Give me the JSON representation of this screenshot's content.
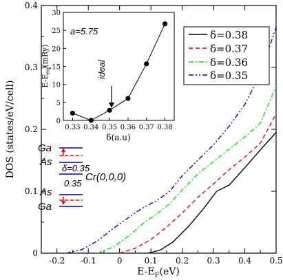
{
  "chart_data": [
    {
      "type": "line",
      "title": "",
      "xlabel": "E-E_F(eV)",
      "xlabel_main": "E-E",
      "xlabel_sub": "F",
      "xlabel_unit": "(eV)",
      "ylabel": "DOS (states/eV/cell)",
      "xlim": [
        -0.25,
        0.5
      ],
      "ylim": [
        0,
        0.4
      ],
      "xticks": [
        -0.2,
        -0.1,
        0,
        0.1,
        0.2,
        0.3,
        0.4,
        0.5
      ],
      "xtick_labels": [
        "-0.2",
        "-0.1",
        "0",
        "0.1",
        "0.2",
        "0.3",
        "0.4",
        "0.5"
      ],
      "yticks": [
        0,
        0.1,
        0.2,
        0.3,
        0.4
      ],
      "ytick_labels": [
        "0",
        "0.1",
        "0.2",
        "0.3",
        "0.4"
      ],
      "legend_position": "top-right",
      "series": [
        {
          "name": "δ=0.38",
          "color": "#000000",
          "dash": "solid",
          "x": [
            0.09,
            0.13,
            0.17,
            0.22,
            0.27,
            0.31,
            0.35,
            0.4,
            0.45,
            0.5
          ],
          "y": [
            0.0,
            0.005,
            0.018,
            0.043,
            0.073,
            0.1,
            0.11,
            0.138,
            0.167,
            0.195
          ]
        },
        {
          "name": "δ=0.37",
          "color": "#ff0000",
          "dash": "dashed",
          "x": [
            0.0,
            0.05,
            0.1,
            0.15,
            0.2,
            0.25,
            0.3,
            0.35,
            0.4,
            0.45,
            0.5
          ],
          "y": [
            0.0,
            0.008,
            0.022,
            0.042,
            0.065,
            0.09,
            0.112,
            0.135,
            0.155,
            0.178,
            0.225
          ]
        },
        {
          "name": "δ=0.36",
          "color": "#00ee00",
          "dash": "dashdot",
          "x": [
            -0.07,
            -0.02,
            0.03,
            0.08,
            0.12,
            0.16,
            0.2,
            0.25,
            0.3,
            0.35,
            0.4,
            0.45,
            0.5
          ],
          "y": [
            0.0,
            0.01,
            0.028,
            0.05,
            0.064,
            0.08,
            0.102,
            0.128,
            0.148,
            0.168,
            0.188,
            0.21,
            0.27
          ]
        },
        {
          "name": "δ=0.35",
          "color": "#0000cc",
          "dash": "dashdotdot",
          "x": [
            -0.17,
            -0.12,
            -0.07,
            -0.02,
            0.03,
            0.07,
            0.1,
            0.12,
            0.16,
            0.2,
            0.25,
            0.3,
            0.35,
            0.4,
            0.45,
            0.5
          ],
          "y": [
            0.0,
            0.006,
            0.02,
            0.04,
            0.058,
            0.072,
            0.08,
            0.085,
            0.1,
            0.125,
            0.15,
            0.175,
            0.205,
            0.24,
            0.29,
            0.365
          ]
        }
      ]
    },
    {
      "type": "line",
      "title": "",
      "xlabel": "δ(a.u)",
      "ylabel": "E-E_eq(mRy)",
      "ylabel_main": "E-E",
      "ylabel_sub": "eq",
      "ylabel_unit": "(mRy)",
      "xlim": [
        0.325,
        0.385
      ],
      "ylim": [
        0,
        30
      ],
      "xticks": [
        0.33,
        0.34,
        0.35,
        0.36,
        0.37,
        0.38
      ],
      "xtick_labels": [
        "0.33",
        "0.34",
        "0.35",
        "0.36",
        "0.37",
        "0.38"
      ],
      "yticks": [
        0,
        5,
        10,
        15,
        20,
        25,
        30
      ],
      "ytick_labels": [
        "0",
        "5",
        "10",
        "15",
        "20",
        "25",
        "30"
      ],
      "series": [
        {
          "color": "#000000",
          "x": [
            0.33,
            0.34,
            0.35,
            0.36,
            0.37,
            0.38
          ],
          "y": [
            2.0,
            0.0,
            2.8,
            6.1,
            15.7,
            26.8
          ]
        }
      ],
      "annotation_param": "a=5.75",
      "annotation_arrow": "ideal"
    }
  ],
  "schematic": {
    "top_label": "Ga",
    "upper_label": "As",
    "upper_delta": "δ=0.35",
    "center_label": "Cr(0,0,0)",
    "lower_gap": "0.35",
    "lower_as": "As",
    "bottom_label": "Ga",
    "line_color": "#0000cc",
    "dash_color": "#ff0000"
  }
}
